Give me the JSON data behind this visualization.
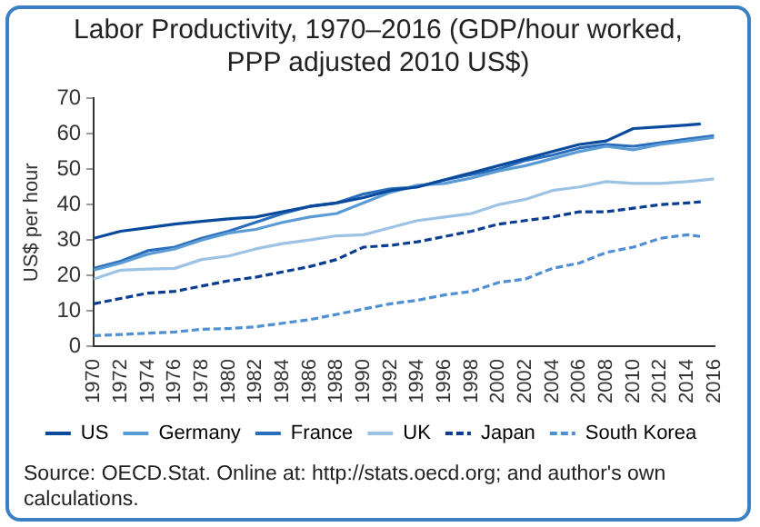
{
  "chart_data": {
    "type": "line",
    "title": "Labor Productivity, 1970–2016 (GDP/hour worked, PPP adjusted 2010 US$)",
    "ylabel": "US$ per hour",
    "x": [
      1970,
      1972,
      1974,
      1976,
      1978,
      1980,
      1982,
      1984,
      1986,
      1988,
      1990,
      1992,
      1994,
      1996,
      1998,
      2000,
      2002,
      2004,
      2006,
      2008,
      2010,
      2012,
      2014,
      2016
    ],
    "series": [
      {
        "name": "US",
        "color": "#0a4a9c",
        "line_style": "solid",
        "x": [
          1970,
          1972,
          1974,
          1976,
          1978,
          1980,
          1982,
          1984,
          1986,
          1988,
          1990,
          1992,
          1994,
          1996,
          1998,
          2000,
          2002,
          2004,
          2006,
          2008,
          2010,
          2012,
          2014,
          2015
        ],
        "values": [
          30.5,
          32.5,
          33.5,
          34.5,
          35.3,
          36,
          36.5,
          38,
          39.5,
          40.5,
          42,
          44,
          45,
          47,
          49,
          51,
          53,
          55,
          57,
          58,
          61.5,
          62,
          62.5,
          62.8
        ]
      },
      {
        "name": "Germany",
        "color": "#5b9bd5",
        "line_style": "solid",
        "values": [
          21.5,
          23.5,
          26,
          27.5,
          30,
          32,
          33,
          35,
          36.5,
          37.5,
          40.5,
          43.5,
          45.5,
          46,
          47.5,
          49.5,
          51,
          53,
          55,
          56.5,
          55.5,
          57,
          58,
          59
        ]
      },
      {
        "name": "France",
        "color": "#2a6ebb",
        "line_style": "solid",
        "values": [
          22,
          24,
          27,
          28,
          30.5,
          32.5,
          35,
          37.5,
          39.5,
          40.5,
          43,
          44.5,
          45,
          47,
          48.5,
          50,
          52.5,
          54,
          56,
          57,
          56.5,
          57.5,
          58.5,
          59.5
        ]
      },
      {
        "name": "UK",
        "color": "#9cc3e6",
        "line_style": "solid",
        "values": [
          19,
          21.5,
          21.8,
          22,
          24.5,
          25.5,
          27.5,
          29,
          30,
          31.2,
          31.5,
          33.5,
          35.5,
          36.5,
          37.5,
          40,
          41.5,
          44,
          45,
          46.5,
          46,
          46,
          46.5,
          47.3
        ]
      },
      {
        "name": "Japan",
        "color": "#0a3d91",
        "line_style": "dashed",
        "x": [
          1970,
          1972,
          1974,
          1976,
          1978,
          1980,
          1982,
          1984,
          1986,
          1988,
          1990,
          1992,
          1994,
          1996,
          1998,
          2000,
          2002,
          2004,
          2006,
          2008,
          2010,
          2012,
          2014,
          2015
        ],
        "values": [
          12,
          13.5,
          15,
          15.5,
          17,
          18.5,
          19.5,
          21,
          22.5,
          24.5,
          28,
          28.5,
          29.5,
          31,
          32.5,
          34.5,
          35.5,
          36.5,
          38,
          38,
          39,
          40,
          40.5,
          40.8
        ]
      },
      {
        "name": "South Korea",
        "color": "#4f8fd4",
        "line_style": "dashed",
        "x": [
          1970,
          1972,
          1974,
          1976,
          1978,
          1980,
          1982,
          1984,
          1986,
          1988,
          1990,
          1992,
          1994,
          1996,
          1998,
          2000,
          2002,
          2004,
          2006,
          2008,
          2010,
          2012,
          2014,
          2015
        ],
        "values": [
          3,
          3.3,
          3.7,
          4,
          4.8,
          5,
          5.5,
          6.5,
          7.5,
          9,
          10.5,
          12,
          13,
          14.5,
          15.5,
          18,
          19,
          22,
          23.5,
          26.5,
          28,
          30.5,
          31.5,
          31
        ]
      }
    ],
    "xlim": [
      1970,
      2016
    ],
    "xticks": [
      1970,
      1972,
      1974,
      1976,
      1978,
      1980,
      1982,
      1984,
      1986,
      1988,
      1990,
      1992,
      1994,
      1996,
      1998,
      2000,
      2002,
      2004,
      2006,
      2008,
      2010,
      2012,
      2014,
      2016
    ],
    "ylim": [
      0,
      70
    ],
    "yticks": [
      0,
      10,
      20,
      30,
      40,
      50,
      60,
      70
    ],
    "legend": "bottom",
    "grid": false,
    "marker": "none",
    "annotations": [
      "Source: OECD.Stat. Online at: http://stats.oecd.org; and author's own calculations."
    ]
  }
}
